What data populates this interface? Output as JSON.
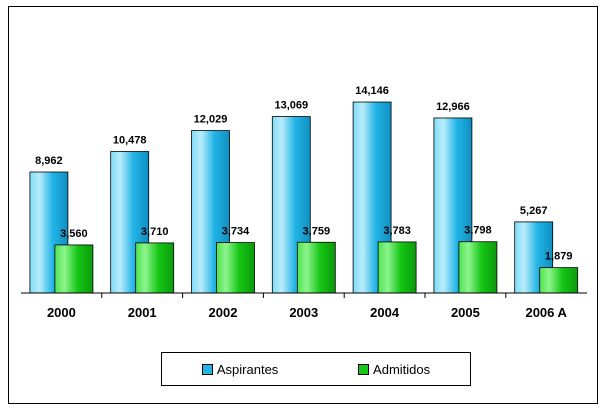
{
  "chart_data": {
    "type": "bar",
    "categories": [
      "2000",
      "2001",
      "2002",
      "2003",
      "2004",
      "2005",
      "2006 A"
    ],
    "series": [
      {
        "name": "Aspirantes",
        "color": "#1fb6e8",
        "values": [
          8962,
          10478,
          12029,
          13069,
          14146,
          12966,
          5267
        ],
        "labels": [
          "8,962",
          "10,478",
          "12,029",
          "13,069",
          "14,146",
          "12,966",
          "5,267"
        ]
      },
      {
        "name": "Admitidos",
        "color": "#16c716",
        "values": [
          3560,
          3710,
          3734,
          3759,
          3783,
          3798,
          1879
        ],
        "labels": [
          "3,560",
          "3,710",
          "3,734",
          "3,759",
          "3,783",
          "3,798",
          "1,879"
        ]
      }
    ],
    "ylim": [
      0,
      16000
    ],
    "grid": false,
    "legend_position": "bottom"
  }
}
